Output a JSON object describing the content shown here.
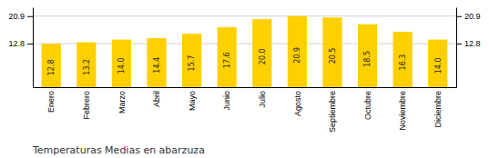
{
  "chart_data": {
    "type": "bar",
    "title": "Temperaturas Medias en abarzuza",
    "categories": [
      "Enero",
      "Febrero",
      "Marzo",
      "Abril",
      "Mayo",
      "Junio",
      "Julio",
      "Agosto",
      "Septiembre",
      "Octubre",
      "Noviembre",
      "Diciembre"
    ],
    "values": [
      12.8,
      13.2,
      14.0,
      14.4,
      15.7,
      17.6,
      20.0,
      20.9,
      20.5,
      18.5,
      16.3,
      14.0
    ],
    "value_labels": [
      "12.8",
      "13.2",
      "14.0",
      "14.4",
      "15.7",
      "17.6",
      "20.0",
      "20.9",
      "20.5",
      "18.5",
      "16.3",
      "14.0"
    ],
    "data_labels": true,
    "color": "#FFD000",
    "ylim": [
      0.0,
      23.5
    ],
    "yticks": [
      12.8,
      20.9
    ],
    "y2lim": [
      0.0,
      23.5
    ],
    "y2ticks": [
      12.8,
      20.9
    ],
    "grid": true
  }
}
